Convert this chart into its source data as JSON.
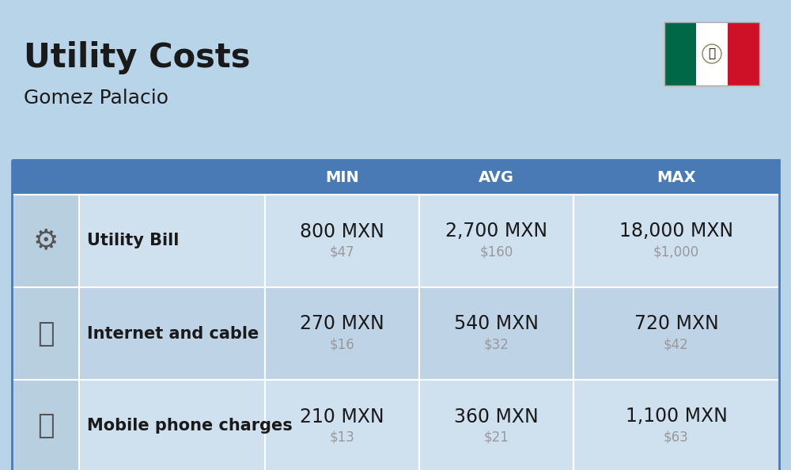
{
  "title": "Utility Costs",
  "subtitle": "Gomez Palacio",
  "bg_color": "#b8d4e8",
  "header_bg": "#4a7ab5",
  "header_text_color": "#ffffff",
  "row_color_light": "#cfe0ef",
  "row_color_dark": "#bed4e6",
  "icon_col_color": "#b8cfe0",
  "col_header_color": "#4a7ab5",
  "table_border_color": "#4a7ab5",
  "columns": [
    "",
    "",
    "MIN",
    "AVG",
    "MAX"
  ],
  "rows": [
    {
      "label": "Utility Bill",
      "min_mxn": "800 MXN",
      "min_usd": "$47",
      "avg_mxn": "2,700 MXN",
      "avg_usd": "$160",
      "max_mxn": "18,000 MXN",
      "max_usd": "$1,000"
    },
    {
      "label": "Internet and cable",
      "min_mxn": "270 MXN",
      "min_usd": "$16",
      "avg_mxn": "540 MXN",
      "avg_usd": "$32",
      "max_mxn": "720 MXN",
      "max_usd": "$42"
    },
    {
      "label": "Mobile phone charges",
      "min_mxn": "210 MXN",
      "min_usd": "$13",
      "avg_mxn": "360 MXN",
      "avg_usd": "$21",
      "max_mxn": "1,100 MXN",
      "max_usd": "$63"
    }
  ],
  "title_fontsize": 30,
  "subtitle_fontsize": 18,
  "header_fontsize": 14,
  "cell_mxn_fontsize": 17,
  "cell_usd_fontsize": 12,
  "label_fontsize": 15,
  "usd_color": "#999999",
  "text_color": "#1a1a1a",
  "flag_green": "#006847",
  "flag_white": "#ffffff",
  "flag_red": "#ce1126"
}
